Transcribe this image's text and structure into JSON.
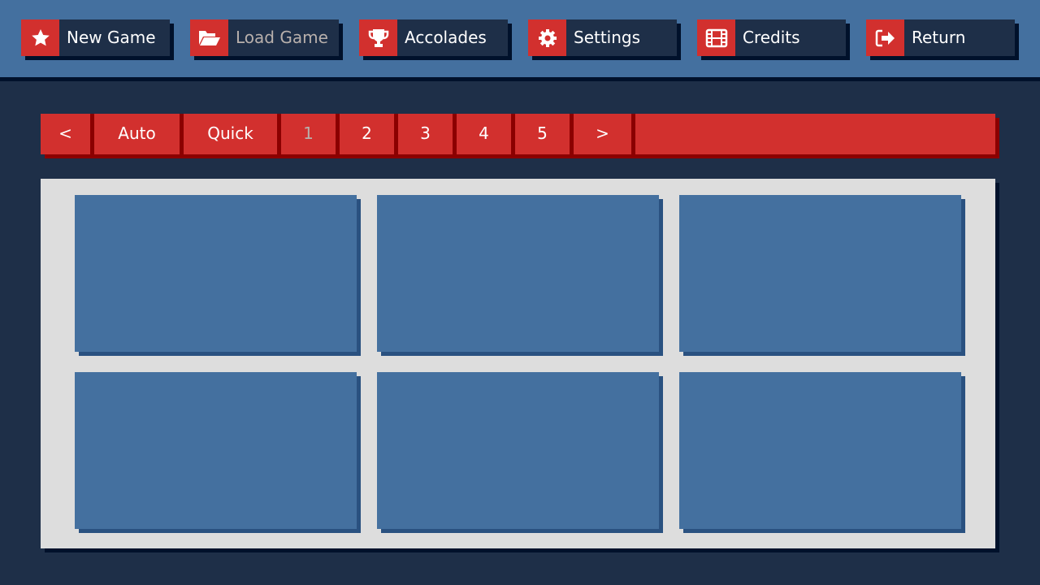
{
  "menu": [
    {
      "label": "New Game",
      "icon": "star-icon"
    },
    {
      "label": "Load Game",
      "icon": "folder-open-icon",
      "active": true
    },
    {
      "label": "Accolades",
      "icon": "trophy-icon"
    },
    {
      "label": "Settings",
      "icon": "gear-icon"
    },
    {
      "label": "Credits",
      "icon": "film-icon"
    },
    {
      "label": "Return",
      "icon": "exit-icon"
    }
  ],
  "pages": {
    "prev": "<",
    "auto": "Auto",
    "quick": "Quick",
    "numbers": [
      "1",
      "2",
      "3",
      "4",
      "5"
    ],
    "selected": "1",
    "next": ">"
  },
  "slots_count_visible": 6,
  "colors": {
    "accent": "#d2302e",
    "bar": "#44709f",
    "background": "#1e2f48",
    "panel": "#dddddd"
  }
}
